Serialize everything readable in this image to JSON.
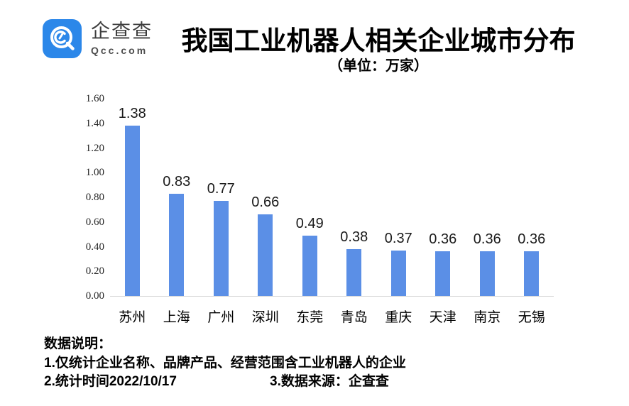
{
  "brand": {
    "name": "企查查",
    "domain": "Qcc.com",
    "logo_color": "#2b87e9"
  },
  "chart_data": {
    "type": "bar",
    "title": "我国工业机器人相关企业城市分布",
    "subtitle": "（单位：万家）",
    "categories": [
      "苏州",
      "上海",
      "广州",
      "深圳",
      "东莞",
      "青岛",
      "重庆",
      "天津",
      "南京",
      "无锡"
    ],
    "values": [
      1.38,
      0.83,
      0.77,
      0.66,
      0.49,
      0.38,
      0.37,
      0.36,
      0.36,
      0.36
    ],
    "value_labels": [
      "1.38",
      "0.83",
      "0.77",
      "0.66",
      "0.49",
      "0.38",
      "0.37",
      "0.36",
      "0.36",
      "0.36"
    ],
    "xlabel": "",
    "ylabel": "",
    "ylim": [
      0,
      1.6
    ],
    "yticks": [
      "1.60",
      "1.40",
      "1.20",
      "1.00",
      "0.80",
      "0.60",
      "0.40",
      "0.20",
      "0.00"
    ],
    "bar_color": "#5b8fe6",
    "grid": false,
    "legend": "none"
  },
  "footer": {
    "heading": "数据说明：",
    "note1": "1.仅统计企业名称、品牌产品、经营范围含工业机器人的企业",
    "note2": "2.统计时间2022/10/17",
    "note3": "3.数据来源：企查查"
  }
}
